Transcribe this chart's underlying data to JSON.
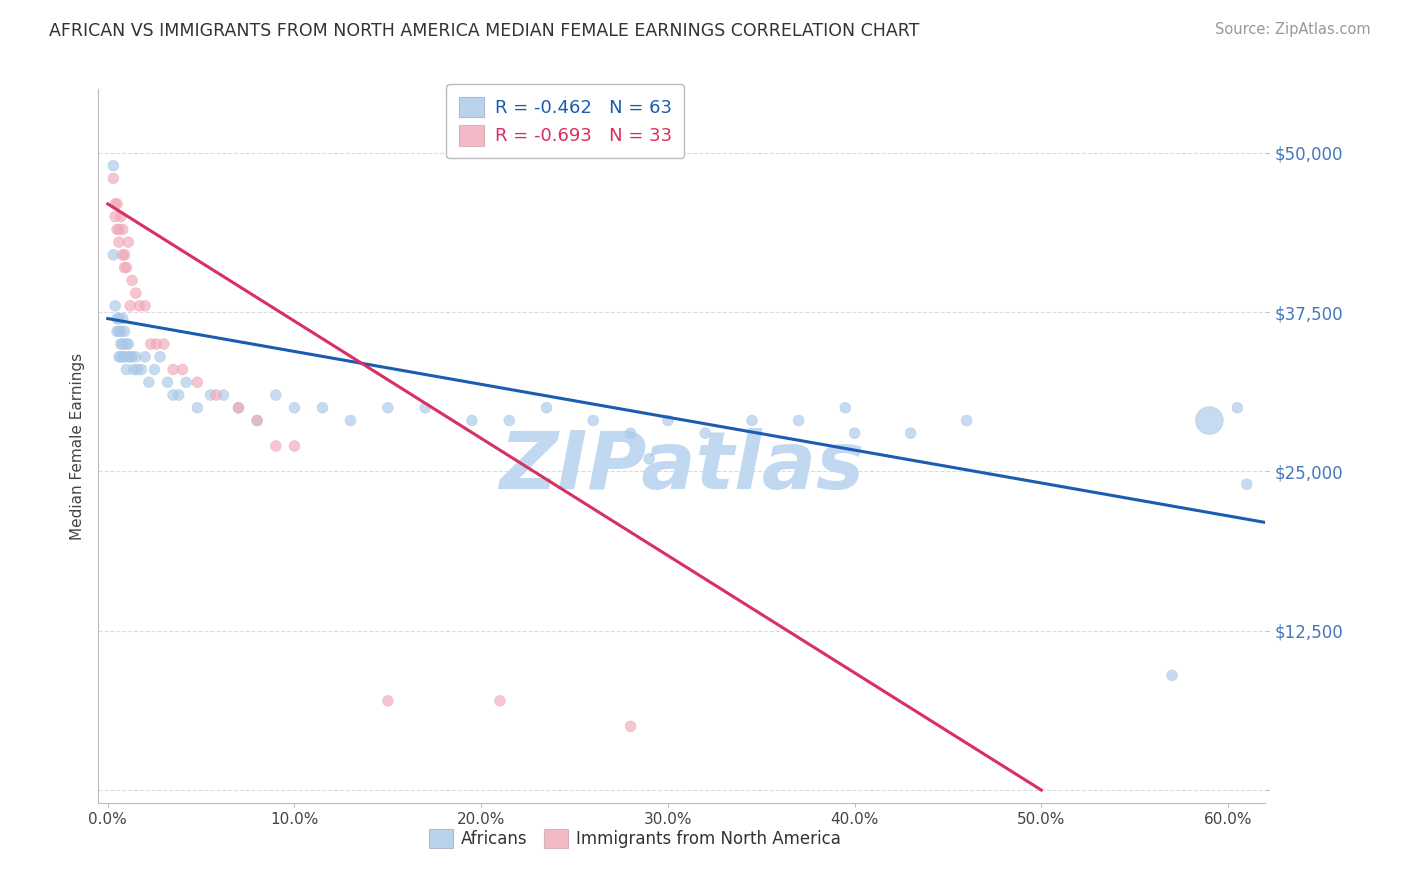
{
  "title": "AFRICAN VS IMMIGRANTS FROM NORTH AMERICA MEDIAN FEMALE EARNINGS CORRELATION CHART",
  "source": "Source: ZipAtlas.com",
  "ylabel": "Median Female Earnings",
  "background_color": "#ffffff",
  "grid_color": "#d0d8e8",
  "title_fontsize": 12.5,
  "source_fontsize": 10.5,
  "ylabel_fontsize": 11,
  "xlim": [
    -0.005,
    0.62
  ],
  "ylim": [
    -1000,
    55000
  ],
  "yticks": [
    0,
    12500,
    25000,
    37500,
    50000
  ],
  "ytick_labels": [
    "",
    "$12,500",
    "$25,000",
    "$37,500",
    "$50,000"
  ],
  "xticks": [
    0.0,
    0.1,
    0.2,
    0.3,
    0.4,
    0.5,
    0.6
  ],
  "xtick_labels": [
    "0.0%",
    "10.0%",
    "20.0%",
    "30.0%",
    "40.0%",
    "50.0%",
    "60.0%"
  ],
  "legend_r1": "R = -0.462",
  "legend_n1": "N = 63",
  "legend_r2": "R = -0.693",
  "legend_n2": "N = 33",
  "blue_color": "#a8c8e8",
  "pink_color": "#f0a8b8",
  "blue_line_color": "#1a5cb0",
  "pink_line_color": "#d83060",
  "watermark": "ZIPatlas",
  "watermark_color": "#c0d8f0",
  "blue_line_x0": 0.0,
  "blue_line_y0": 37000,
  "blue_line_x1": 0.62,
  "blue_line_y1": 21000,
  "pink_line_x0": 0.0,
  "pink_line_y0": 46000,
  "pink_line_x1": 0.5,
  "pink_line_y1": 0,
  "blue_x": [
    0.003,
    0.003,
    0.004,
    0.005,
    0.005,
    0.006,
    0.006,
    0.006,
    0.007,
    0.007,
    0.007,
    0.008,
    0.008,
    0.008,
    0.009,
    0.009,
    0.01,
    0.01,
    0.011,
    0.011,
    0.012,
    0.013,
    0.014,
    0.015,
    0.016,
    0.018,
    0.02,
    0.022,
    0.025,
    0.028,
    0.032,
    0.035,
    0.038,
    0.042,
    0.048,
    0.055,
    0.062,
    0.07,
    0.08,
    0.09,
    0.1,
    0.115,
    0.13,
    0.15,
    0.17,
    0.195,
    0.215,
    0.235,
    0.26,
    0.28,
    0.3,
    0.32,
    0.345,
    0.37,
    0.395,
    0.29,
    0.4,
    0.43,
    0.46,
    0.57,
    0.59,
    0.605,
    0.61
  ],
  "blue_y": [
    49000,
    42000,
    38000,
    36000,
    37000,
    37000,
    36000,
    34000,
    36000,
    35000,
    34000,
    37000,
    35000,
    34000,
    36000,
    34000,
    35000,
    33000,
    35000,
    34000,
    34000,
    34000,
    33000,
    34000,
    33000,
    33000,
    34000,
    32000,
    33000,
    34000,
    32000,
    31000,
    31000,
    32000,
    30000,
    31000,
    31000,
    30000,
    29000,
    31000,
    30000,
    30000,
    29000,
    30000,
    30000,
    29000,
    29000,
    30000,
    29000,
    28000,
    29000,
    28000,
    29000,
    29000,
    30000,
    26000,
    28000,
    28000,
    29000,
    9000,
    29000,
    30000,
    24000
  ],
  "blue_sizes": [
    60,
    60,
    60,
    60,
    60,
    60,
    60,
    60,
    60,
    60,
    60,
    60,
    60,
    60,
    60,
    60,
    60,
    60,
    60,
    60,
    60,
    60,
    60,
    60,
    60,
    60,
    60,
    60,
    60,
    60,
    60,
    60,
    60,
    60,
    60,
    60,
    60,
    60,
    60,
    60,
    60,
    60,
    60,
    60,
    60,
    60,
    60,
    60,
    60,
    60,
    60,
    60,
    60,
    60,
    60,
    60,
    60,
    60,
    60,
    60,
    400,
    60,
    60
  ],
  "pink_x": [
    0.003,
    0.004,
    0.004,
    0.005,
    0.005,
    0.006,
    0.006,
    0.007,
    0.008,
    0.008,
    0.009,
    0.009,
    0.01,
    0.011,
    0.012,
    0.013,
    0.015,
    0.017,
    0.02,
    0.023,
    0.026,
    0.03,
    0.035,
    0.04,
    0.048,
    0.058,
    0.07,
    0.08,
    0.09,
    0.1,
    0.15,
    0.21,
    0.28
  ],
  "pink_y": [
    48000,
    46000,
    45000,
    46000,
    44000,
    44000,
    43000,
    45000,
    44000,
    42000,
    42000,
    41000,
    41000,
    43000,
    38000,
    40000,
    39000,
    38000,
    38000,
    35000,
    35000,
    35000,
    33000,
    33000,
    32000,
    31000,
    30000,
    29000,
    27000,
    27000,
    7000,
    7000,
    5000
  ],
  "pink_sizes": [
    60,
    60,
    60,
    60,
    60,
    60,
    60,
    60,
    60,
    60,
    60,
    60,
    60,
    60,
    60,
    60,
    60,
    60,
    60,
    60,
    60,
    60,
    60,
    60,
    60,
    60,
    60,
    60,
    60,
    60,
    60,
    60,
    60
  ]
}
